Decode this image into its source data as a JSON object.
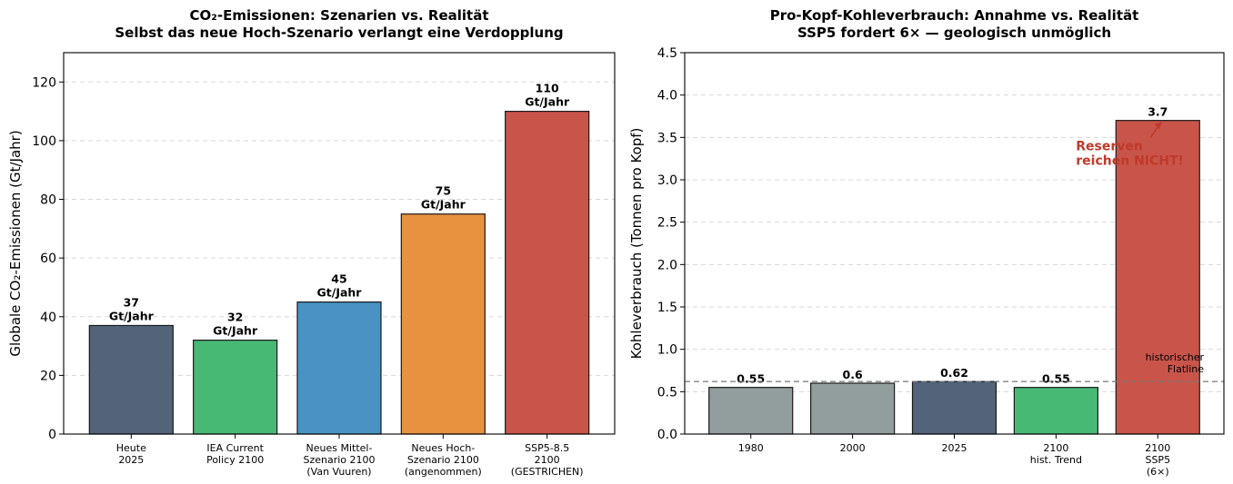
{
  "chart_data": [
    {
      "type": "bar",
      "title": "CO₂-Emissionen: Szenarien vs. Realität",
      "subtitle": "Selbst das neue Hoch-Szenario verlangt eine Verdopplung",
      "xlabel": "",
      "ylabel": "Globale CO₂-Emissionen (Gt/Jahr)",
      "ylim": [
        0,
        130
      ],
      "yticks": [
        0,
        20,
        40,
        60,
        80,
        100,
        120
      ],
      "grid": true,
      "categories": [
        [
          "Heute",
          "2025"
        ],
        [
          "IEA Current",
          "Policy 2100"
        ],
        [
          "Neues Mittel-",
          "Szenario 2100",
          "(Van Vuuren)"
        ],
        [
          "Neues Hoch-",
          "Szenario 2100",
          "(angenommen)"
        ],
        [
          "SSP5-8.5",
          "2100",
          "(GESTRICHEN)"
        ]
      ],
      "values": [
        37,
        32,
        45,
        75,
        110
      ],
      "value_labels": [
        [
          "37",
          "Gt/Jahr"
        ],
        [
          "32",
          "Gt/Jahr"
        ],
        [
          "45",
          "Gt/Jahr"
        ],
        [
          "75",
          "Gt/Jahr"
        ],
        [
          "110",
          "Gt/Jahr"
        ]
      ],
      "colors": [
        "#52637a",
        "#48b975",
        "#4893c4",
        "#e89240",
        "#c9554a"
      ]
    },
    {
      "type": "bar",
      "title": "Pro-Kopf-Kohleverbrauch: Annahme vs. Realität",
      "subtitle": "SSP5 fordert 6× — geologisch unmöglich",
      "xlabel": "",
      "ylabel": "Kohleverbrauch (Tonnen pro Kopf)",
      "ylim": [
        0,
        4.5
      ],
      "yticks": [
        "0.0",
        "0.5",
        "1.0",
        "1.5",
        "2.0",
        "2.5",
        "3.0",
        "3.5",
        "4.0",
        "4.5"
      ],
      "grid": true,
      "categories": [
        [
          "1980"
        ],
        [
          "2000"
        ],
        [
          "2025"
        ],
        [
          "2100",
          "hist. Trend"
        ],
        [
          "2100",
          "SSP5",
          "(6×)"
        ]
      ],
      "values": [
        0.55,
        0.6,
        0.62,
        0.55,
        3.7
      ],
      "value_labels": [
        "0.55",
        "0.6",
        "0.62",
        "0.55",
        "3.7"
      ],
      "colors": [
        "#929e9d",
        "#929e9d",
        "#52637a",
        "#48b975",
        "#c9554a"
      ],
      "reference_line": {
        "value": 0.62,
        "label": [
          "historischer",
          "Flatline"
        ]
      },
      "annotation": {
        "text": [
          "Reserven",
          "reichen NICHT!"
        ],
        "target_value": 3.7,
        "color": "#c0392b"
      }
    }
  ]
}
